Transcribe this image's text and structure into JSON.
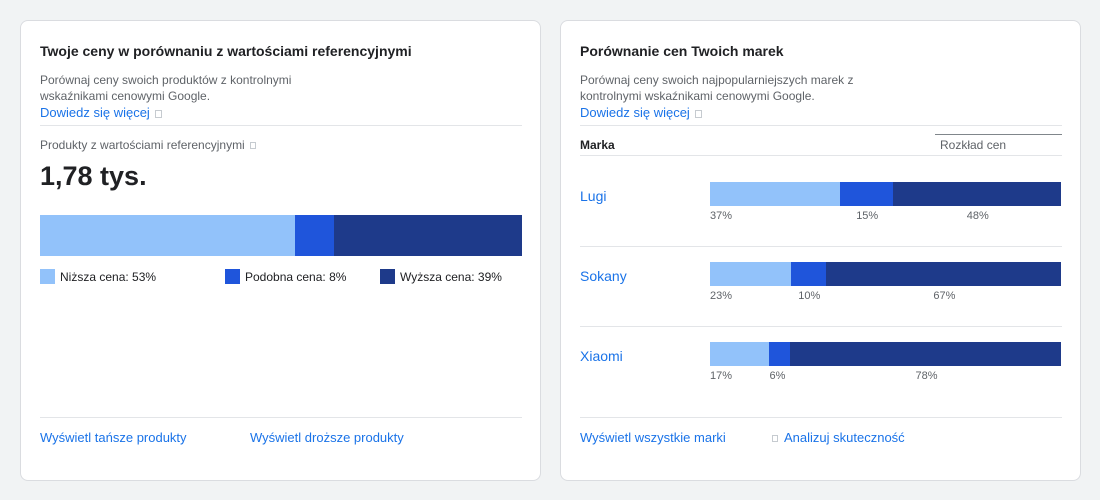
{
  "colors": {
    "lower": "#92c2fa",
    "similar": "#1f55db",
    "higher": "#1e3a8a",
    "link": "#1a73e8"
  },
  "left_card": {
    "title": "Twoje ceny w porównaniu z wartościami referencyjnymi",
    "description_line1": "Porównaj ceny swoich produktów z kontrolnymi",
    "description_line2": "wskaźnikami cenowymi Google.",
    "learn_more": "Dowiedz się więcej",
    "kpi_label": "Produkty z wartościami referencyjnymi",
    "kpi_value": "1,78 tys.",
    "distribution": {
      "lower": 53,
      "similar": 8,
      "higher": 39
    },
    "legend": [
      {
        "key": "lower",
        "label": "Niższa cena: 53%"
      },
      {
        "key": "similar",
        "label": "Podobna cena: 8%"
      },
      {
        "key": "higher",
        "label": "Wyższa cena: 39%"
      }
    ],
    "footer": {
      "cheaper": "Wyświetl tańsze produkty",
      "pricier": "Wyświetl droższe produkty"
    }
  },
  "right_card": {
    "title": "Porównanie cen Twoich marek",
    "description_line1": "Porównaj ceny swoich najpopularniejszych marek z",
    "description_line2": "kontrolnymi wskaźnikami cenowymi Google.",
    "learn_more": "Dowiedz się więcej",
    "col_brand": "Marka",
    "col_dist": "Rozkład cen",
    "brands": [
      {
        "name": "Lugi",
        "lower": 37,
        "similar": 15,
        "higher": 48,
        "labels": [
          "37%",
          "15%",
          "48%"
        ]
      },
      {
        "name": "Sokany",
        "lower": 23,
        "similar": 10,
        "higher": 67,
        "labels": [
          "23%",
          "10%",
          "67%"
        ]
      },
      {
        "name": "Xiaomi",
        "lower": 17,
        "similar": 6,
        "higher": 78,
        "labels": [
          "17%",
          "6%",
          "78%"
        ]
      }
    ],
    "footer": {
      "all_brands": "Wyświetl wszystkie marki",
      "analyze": "Analizuj skuteczność"
    }
  }
}
